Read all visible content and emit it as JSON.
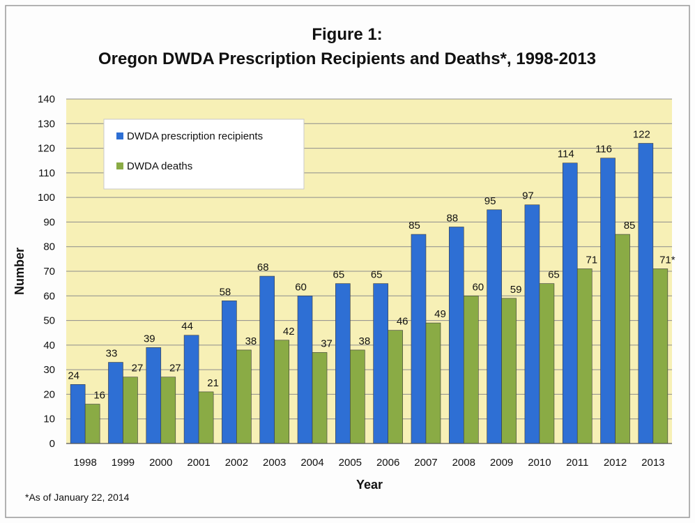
{
  "chart_data": {
    "type": "bar",
    "title_line1": "Figure 1:",
    "title_line2": "Oregon DWDA Prescription Recipients and Deaths*,  1998-2013",
    "xlabel": "Year",
    "ylabel": "Number",
    "ylim": [
      0,
      140
    ],
    "yticks": [
      0,
      10,
      20,
      30,
      40,
      50,
      60,
      70,
      80,
      90,
      100,
      110,
      120,
      130,
      140
    ],
    "grid": true,
    "legend_position": "top-left",
    "categories": [
      "1998",
      "1999",
      "2000",
      "2001",
      "2002",
      "2003",
      "2004",
      "2005",
      "2006",
      "2007",
      "2008",
      "2009",
      "2010",
      "2011",
      "2012",
      "2013"
    ],
    "series": [
      {
        "name": "DWDA prescription recipients",
        "color": "#2e6fd4",
        "values": [
          24,
          33,
          39,
          44,
          58,
          68,
          60,
          65,
          65,
          85,
          88,
          95,
          97,
          114,
          116,
          122
        ],
        "labels": [
          "24",
          "33",
          "39",
          "44",
          "58",
          "68",
          "60",
          "65",
          "65",
          "85",
          "88",
          "95",
          "97",
          "114",
          "116",
          "122"
        ]
      },
      {
        "name": "DWDA deaths",
        "color": "#8aab45",
        "values": [
          16,
          27,
          27,
          21,
          38,
          42,
          37,
          38,
          46,
          49,
          60,
          59,
          65,
          71,
          85,
          71
        ],
        "labels": [
          "16",
          "27",
          "27",
          "21",
          "38",
          "42",
          "37",
          "38",
          "46",
          "49",
          "60",
          "59",
          "65",
          "71",
          "85",
          "71*"
        ]
      }
    ],
    "footnote": "*As of January 22, 2014"
  },
  "colors": {
    "plot_background": "#f7f0b6",
    "gridline": "#8c8c8c",
    "outer_border": "#9a9a9a"
  }
}
